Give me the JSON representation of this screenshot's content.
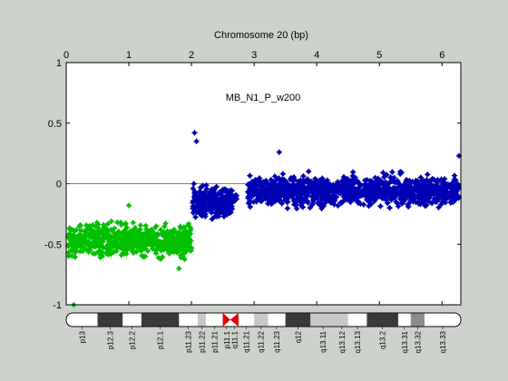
{
  "chart_data": {
    "type": "scatter",
    "title": "Chromosome 20 (bp)",
    "annotation": "MB_N1_P_w200",
    "x_axis": {
      "position": "top",
      "range": [
        0,
        6.3
      ],
      "ticks": [
        0,
        1,
        2,
        3,
        4,
        5,
        6
      ],
      "tick_labels": [
        "0",
        "1",
        "2",
        "3",
        "4",
        "5",
        "6"
      ]
    },
    "y_axis": {
      "range": [
        -1,
        1
      ],
      "ticks": [
        -1,
        -0.5,
        0,
        0.5,
        1
      ],
      "tick_labels": [
        "-1",
        "-0.5",
        "0",
        "0.5",
        "1"
      ]
    },
    "grid": false,
    "reference_line_y": 0,
    "series": [
      {
        "color": "#00c000",
        "segments": [
          {
            "x_start": 0.03,
            "x_end": 2.0,
            "y_mean": -0.47,
            "spread": 0.12,
            "count": 700
          }
        ],
        "outliers": [
          {
            "x": 0.12,
            "y": -1.0
          },
          {
            "x": 1.8,
            "y": -0.7
          },
          {
            "x": 1.0,
            "y": -0.18
          }
        ]
      },
      {
        "color": "#0000b4",
        "segments": [
          {
            "x_start": 2.02,
            "x_end": 2.65,
            "y_mean": -0.15,
            "spread": 0.12,
            "count": 280
          },
          {
            "x_start": 2.67,
            "x_end": 2.72,
            "y_mean": -0.12,
            "spread": 0.04,
            "count": 10
          },
          {
            "x_start": 2.9,
            "x_end": 6.27,
            "y_mean": -0.06,
            "spread": 0.11,
            "count": 1200
          }
        ],
        "outliers": [
          {
            "x": 2.05,
            "y": 0.42
          },
          {
            "x": 2.08,
            "y": 0.35
          },
          {
            "x": 3.4,
            "y": 0.26
          },
          {
            "x": 6.27,
            "y": 0.23
          }
        ]
      }
    ],
    "ideogram": {
      "bands": [
        {
          "name": "p13",
          "start": 0,
          "end": 0.5,
          "stain": "white"
        },
        {
          "name": "p12.3",
          "start": 0.5,
          "end": 0.9,
          "stain": "dark"
        },
        {
          "name": "p12.2",
          "start": 0.9,
          "end": 1.2,
          "stain": "white"
        },
        {
          "name": "p12.1",
          "start": 1.2,
          "end": 1.8,
          "stain": "dark"
        },
        {
          "name": "p11.23",
          "start": 1.8,
          "end": 2.1,
          "stain": "white"
        },
        {
          "name": "p11.22",
          "start": 2.1,
          "end": 2.23,
          "stain": "light"
        },
        {
          "name": "p11.21",
          "start": 2.23,
          "end": 2.5,
          "stain": "white"
        },
        {
          "name": "p11.1",
          "start": 2.5,
          "end": 2.62,
          "stain": "centromere"
        },
        {
          "name": "q11.1",
          "start": 2.62,
          "end": 2.75,
          "stain": "centromere"
        },
        {
          "name": "q11.21",
          "start": 2.75,
          "end": 3.0,
          "stain": "white"
        },
        {
          "name": "q11.22",
          "start": 3.0,
          "end": 3.22,
          "stain": "light"
        },
        {
          "name": "q11.23",
          "start": 3.22,
          "end": 3.5,
          "stain": "white"
        },
        {
          "name": "q12",
          "start": 3.5,
          "end": 3.9,
          "stain": "dark"
        },
        {
          "name": "q13.11",
          "start": 3.9,
          "end": 4.3,
          "stain": "light"
        },
        {
          "name": "q13.12",
          "start": 4.3,
          "end": 4.5,
          "stain": "light"
        },
        {
          "name": "q13.13",
          "start": 4.5,
          "end": 4.8,
          "stain": "white"
        },
        {
          "name": "q13.2",
          "start": 4.8,
          "end": 5.3,
          "stain": "dark"
        },
        {
          "name": "q13.31",
          "start": 5.3,
          "end": 5.5,
          "stain": "white"
        },
        {
          "name": "q13.32",
          "start": 5.5,
          "end": 5.72,
          "stain": "medium"
        },
        {
          "name": "q13.33",
          "start": 5.72,
          "end": 6.3,
          "stain": "white"
        }
      ]
    }
  }
}
